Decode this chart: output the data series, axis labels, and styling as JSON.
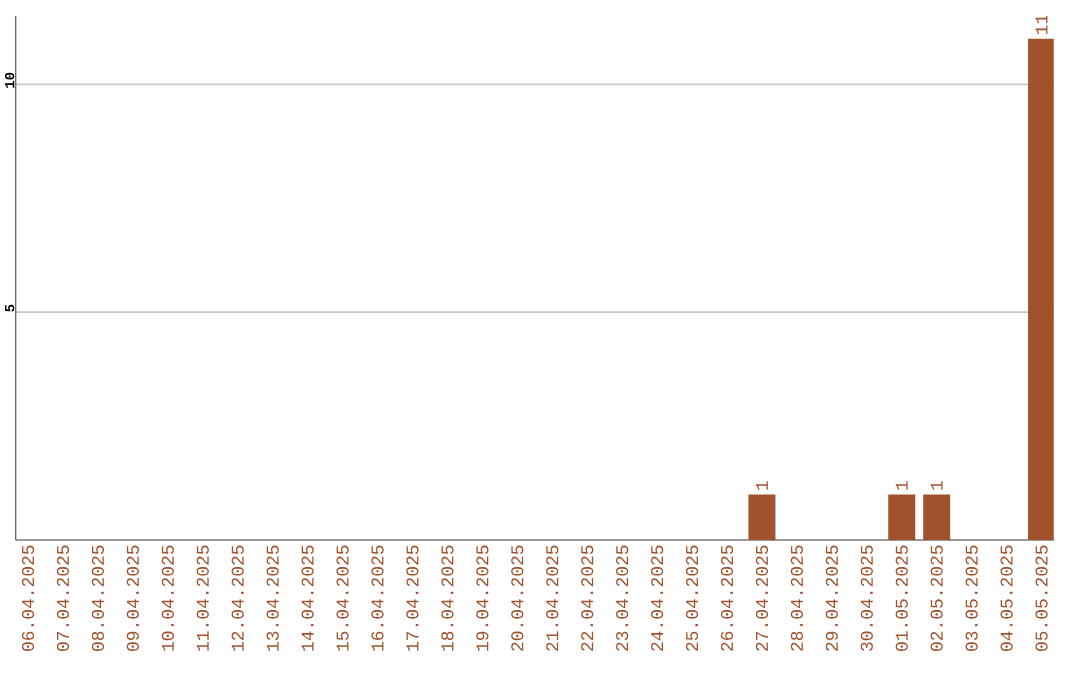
{
  "chart_data": {
    "type": "bar",
    "categories": [
      "06.04.2025",
      "07.04.2025",
      "08.04.2025",
      "09.04.2025",
      "10.04.2025",
      "11.04.2025",
      "12.04.2025",
      "13.04.2025",
      "14.04.2025",
      "15.04.2025",
      "16.04.2025",
      "17.04.2025",
      "18.04.2025",
      "19.04.2025",
      "20.04.2025",
      "21.04.2025",
      "22.04.2025",
      "23.04.2025",
      "24.04.2025",
      "25.04.2025",
      "26.04.2025",
      "27.04.2025",
      "28.04.2025",
      "29.04.2025",
      "30.04.2025",
      "01.05.2025",
      "02.05.2025",
      "03.05.2025",
      "04.05.2025",
      "05.05.2025"
    ],
    "values": [
      0,
      0,
      0,
      0,
      0,
      0,
      0,
      0,
      0,
      0,
      0,
      0,
      0,
      0,
      0,
      0,
      0,
      0,
      0,
      0,
      0,
      1,
      0,
      0,
      0,
      1,
      1,
      0,
      0,
      11
    ],
    "value_labels": [
      null,
      null,
      null,
      null,
      null,
      null,
      null,
      null,
      null,
      null,
      null,
      null,
      null,
      null,
      null,
      null,
      null,
      null,
      null,
      null,
      null,
      "1",
      null,
      null,
      null,
      "1",
      "1",
      null,
      null,
      "11"
    ],
    "color": "#a0522d",
    "ylim": [
      0,
      11.5
    ],
    "yticks": [
      5,
      10
    ],
    "grid": "y"
  }
}
